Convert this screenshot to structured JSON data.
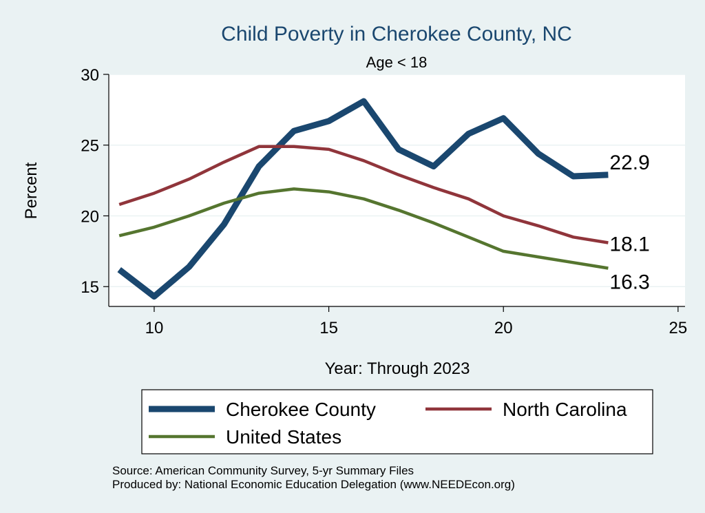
{
  "chart_data": {
    "type": "line",
    "title": "Child Poverty in Cherokee County, NC",
    "subtitle": "Age < 18",
    "xlabel": "Year: Through 2023",
    "ylabel": "Percent",
    "xlim": [
      8.7,
      25.2
    ],
    "ylim": [
      13.6,
      30.0
    ],
    "xticks": [
      10,
      15,
      20,
      25
    ],
    "yticks": [
      15,
      20,
      25,
      30
    ],
    "grid": true,
    "legend_position": "bottom",
    "series": [
      {
        "name": "Cherokee County",
        "color": "#1a476f",
        "end_label": "22.9",
        "x": [
          9,
          10,
          11,
          12,
          13,
          14,
          15,
          16,
          17,
          18,
          19,
          20,
          21,
          22,
          23
        ],
        "y": [
          16.2,
          14.3,
          16.4,
          19.4,
          23.5,
          26.0,
          26.7,
          28.1,
          24.7,
          23.5,
          25.8,
          26.9,
          24.4,
          22.8,
          22.9
        ]
      },
      {
        "name": "North Carolina",
        "color": "#90353b",
        "end_label": "18.1",
        "x": [
          9,
          10,
          11,
          12,
          13,
          14,
          15,
          16,
          17,
          18,
          19,
          20,
          21,
          22,
          23
        ],
        "y": [
          20.8,
          21.6,
          22.6,
          23.8,
          24.9,
          24.9,
          24.7,
          23.9,
          22.9,
          22.0,
          21.2,
          20.0,
          19.3,
          18.5,
          18.1
        ]
      },
      {
        "name": "United States",
        "color": "#55752f",
        "end_label": "16.3",
        "x": [
          9,
          10,
          11,
          12,
          13,
          14,
          15,
          16,
          17,
          18,
          19,
          20,
          21,
          22,
          23
        ],
        "y": [
          18.6,
          19.2,
          20.0,
          20.9,
          21.6,
          21.9,
          21.7,
          21.2,
          20.4,
          19.5,
          18.5,
          17.5,
          17.1,
          16.7,
          16.3
        ]
      }
    ]
  },
  "footer": {
    "source": "Source: American Community Survey, 5-yr Summary Files",
    "producer": "Produced by: National Economic Education Delegation (www.NEEDEcon.org)"
  }
}
